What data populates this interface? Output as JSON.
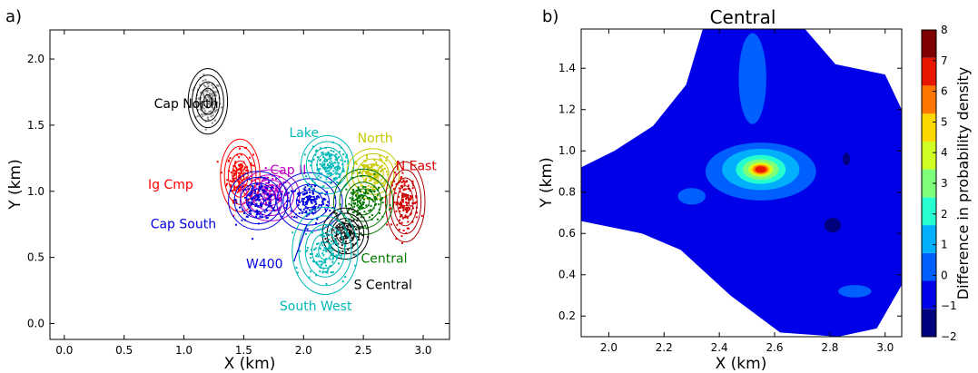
{
  "chart_data": [
    {
      "panel": "a)",
      "type": "scatter",
      "title": "",
      "xlabel": "X (km)",
      "ylabel": "Y (km)",
      "xlim": [
        -0.12,
        3.22
      ],
      "ylim": [
        -0.12,
        2.22
      ],
      "xticks": [
        "0.0",
        "0.5",
        "1.0",
        "1.5",
        "2.0",
        "2.5",
        "3.0"
      ],
      "yticks": [
        "0.0",
        "0.5",
        "1.0",
        "1.5",
        "2.0"
      ],
      "grid": false,
      "series": [
        {
          "name": "Cap North",
          "color": "#8a8a8a",
          "contour_color": "#000000",
          "center": [
            1.2,
            1.68
          ],
          "spread": [
            0.06,
            0.09
          ],
          "label_at": [
            0.75,
            1.63
          ]
        },
        {
          "name": "Ig Cmp",
          "color": "#ff0000",
          "contour_color": "#ff0000",
          "center": [
            1.47,
            1.12
          ],
          "spread": [
            0.06,
            0.1
          ],
          "label_at": [
            0.7,
            1.02
          ]
        },
        {
          "name": "Cap II",
          "color": "#c000c0",
          "contour_color": "#c000c0",
          "center": [
            1.72,
            0.97
          ],
          "spread": [
            0.09,
            0.07
          ],
          "label_at": [
            1.72,
            1.13
          ]
        },
        {
          "name": "Cap South",
          "color": "#0000dd",
          "contour_color": "#0000dd",
          "center": [
            1.62,
            0.93
          ],
          "spread": [
            0.09,
            0.08
          ],
          "label_at": [
            0.72,
            0.72
          ]
        },
        {
          "name": "W400",
          "color": "#0000dd",
          "contour_color": "#0000dd",
          "center": [
            2.05,
            0.92
          ],
          "spread": [
            0.1,
            0.08
          ],
          "label_at": [
            1.52,
            0.42
          ]
        },
        {
          "name": "Lake",
          "color": "#00b8b8",
          "contour_color": "#00b8b8",
          "center": [
            2.2,
            1.2
          ],
          "spread": [
            0.08,
            0.08
          ],
          "label_at": [
            1.88,
            1.41
          ]
        },
        {
          "name": "North",
          "color": "#c8c800",
          "contour_color": "#c8c800",
          "center": [
            2.58,
            1.13
          ],
          "spread": [
            0.08,
            0.07
          ],
          "label_at": [
            2.45,
            1.37
          ]
        },
        {
          "name": "N East",
          "color": "#dd0000",
          "contour_color": "#aa0000",
          "center": [
            2.85,
            0.92
          ],
          "spread": [
            0.06,
            0.11
          ],
          "label_at": [
            2.77,
            1.16
          ]
        },
        {
          "name": "Central",
          "color": "#007700",
          "contour_color": "#007700",
          "center": [
            2.5,
            0.92
          ],
          "spread": [
            0.09,
            0.09
          ],
          "label_at": [
            2.48,
            0.46
          ]
        },
        {
          "name": "S Central",
          "color": "#222222",
          "contour_color": "#000000",
          "center": [
            2.35,
            0.68
          ],
          "spread": [
            0.07,
            0.07
          ],
          "label_at": [
            2.42,
            0.26
          ]
        },
        {
          "name": "South West",
          "color": "#00b8b8",
          "contour_color": "#00b8b8",
          "center": [
            2.18,
            0.55
          ],
          "spread": [
            0.1,
            0.12
          ],
          "label_at": [
            1.8,
            0.1
          ]
        }
      ]
    },
    {
      "panel": "b)",
      "type": "heatmap",
      "title": "Central",
      "xlabel": "X (km)",
      "ylabel": "Y (km)",
      "xlim": [
        1.9,
        3.06
      ],
      "ylim": [
        0.1,
        1.59
      ],
      "xticks": [
        "2.0",
        "2.2",
        "2.4",
        "2.6",
        "2.8",
        "3.0"
      ],
      "yticks": [
        "0.2",
        "0.4",
        "0.6",
        "0.8",
        "1.0",
        "1.2",
        "1.4"
      ],
      "peak": {
        "x": 2.55,
        "y": 0.91,
        "value": 8
      },
      "minimum": {
        "x": 2.81,
        "y": 0.64,
        "value": -2
      },
      "colorbar": {
        "label": "Difference in probability density",
        "levels": [
          -2,
          -1,
          0,
          1,
          2,
          3,
          4,
          5,
          6,
          7,
          8
        ],
        "ticks": [
          "−2",
          "−1",
          "0",
          "1",
          "2",
          "3",
          "4",
          "5",
          "6",
          "7",
          "8"
        ],
        "colors": [
          "#00007f",
          "#0000e8",
          "#0060ff",
          "#00b0ff",
          "#26ffd0",
          "#7dff7a",
          "#d0ff26",
          "#ffd700",
          "#ff7700",
          "#e81800",
          "#7f0000"
        ]
      }
    }
  ]
}
